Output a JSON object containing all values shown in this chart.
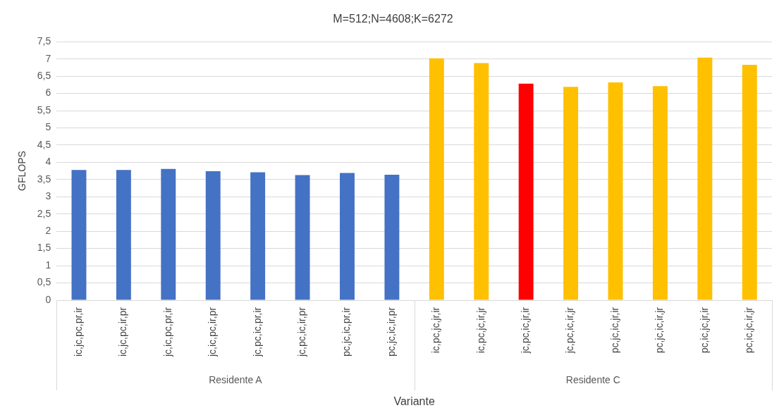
{
  "chart_data": {
    "type": "bar",
    "title": "M=512;N=4608;K=6272",
    "xlabel": "Variante",
    "ylabel": "GFLOPS",
    "categories": [
      "ic,jc,pc,pr,ir",
      "ic,jc,pc,ir,pr",
      "jc,ic,pc,pr,ir",
      "jc,ic,pc,ir,pr",
      "jc,pc,ic,pr,ir",
      "jc,pc,ic,ir,pr",
      "pc,jc,ic,pr,ir",
      "pc,jc,ic,ir,pr",
      "ic,pc,jc,jr,ir",
      "ic,pc,jc,ir,jr",
      "jc,pc,ic,jr,ir",
      "jc,pc,ic,ir,jr",
      "pc,jc,ic,jr,ir",
      "pc,jc,ic,ir,jr",
      "pc,ic,jc,jr,ir",
      "pc,ic,jc,ir,jr"
    ],
    "values": [
      3.78,
      3.78,
      3.81,
      3.74,
      3.71,
      3.63,
      3.69,
      3.64,
      7.02,
      6.88,
      6.28,
      6.19,
      6.32,
      6.21,
      7.04,
      6.83
    ],
    "colors": [
      "#4472c4",
      "#4472c4",
      "#4472c4",
      "#4472c4",
      "#4472c4",
      "#4472c4",
      "#4472c4",
      "#4472c4",
      "#ffc000",
      "#ffc000",
      "#ff0000",
      "#ffc000",
      "#ffc000",
      "#ffc000",
      "#ffc000",
      "#ffc000"
    ],
    "annotations": [
      "Residente A",
      "Residente C"
    ],
    "ylim": [
      0,
      7.5
    ],
    "yticks": [
      0,
      {
        "value": 0.5,
        "label": "0,5"
      },
      1,
      {
        "value": 1.5,
        "label": "1,5"
      },
      2,
      {
        "value": 2.5,
        "label": "2,5"
      },
      3,
      {
        "value": 3.5,
        "label": "3,5"
      },
      4,
      {
        "value": 4.5,
        "label": "4,5"
      },
      5,
      {
        "value": 5.5,
        "label": "5,5"
      },
      6,
      {
        "value": 6.5,
        "label": "6,5"
      },
      7,
      {
        "value": 7.5,
        "label": "7,5"
      }
    ],
    "grid": "y",
    "legend": false
  }
}
